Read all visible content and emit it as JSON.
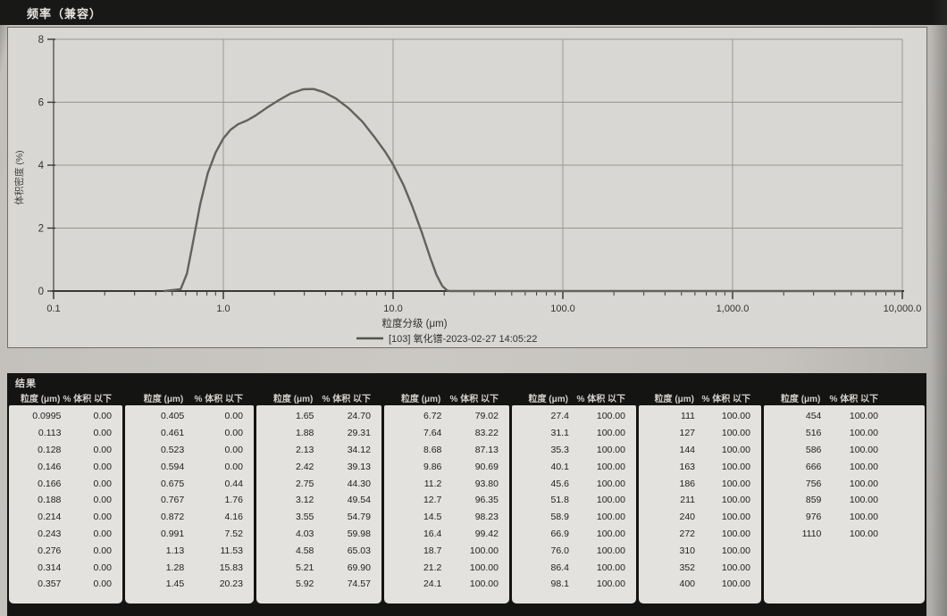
{
  "header": {
    "title": "频率（兼容）"
  },
  "chart_data": {
    "type": "line",
    "title": "频率（兼容）",
    "xlabel": "粒度分级 (μm)",
    "ylabel": "体积密度 (%)",
    "xscale": "log",
    "xlim": [
      0.1,
      10000
    ],
    "ylim": [
      0,
      8
    ],
    "x_tick_labels": [
      "0.1",
      "1.0",
      "10.0",
      "100.0",
      "1,000.0",
      "10,000.0"
    ],
    "x_tick_values": [
      0.1,
      1,
      10,
      100,
      1000,
      10000
    ],
    "y_ticks": [
      0,
      2,
      4,
      6,
      8
    ],
    "grid": true,
    "legend_position": "bottom",
    "curve_color": "#64625d",
    "series": [
      {
        "name": "[103] 氧化镨-2023-02-27 14:05:22",
        "points": [
          [
            0.45,
            0
          ],
          [
            0.56,
            0.06
          ],
          [
            0.61,
            0.55
          ],
          [
            0.66,
            1.5
          ],
          [
            0.73,
            2.75
          ],
          [
            0.81,
            3.75
          ],
          [
            0.9,
            4.4
          ],
          [
            1.0,
            4.85
          ],
          [
            1.1,
            5.12
          ],
          [
            1.22,
            5.3
          ],
          [
            1.38,
            5.42
          ],
          [
            1.55,
            5.58
          ],
          [
            1.8,
            5.82
          ],
          [
            2.1,
            6.05
          ],
          [
            2.5,
            6.28
          ],
          [
            2.95,
            6.41
          ],
          [
            3.4,
            6.42
          ],
          [
            3.9,
            6.32
          ],
          [
            4.6,
            6.12
          ],
          [
            5.5,
            5.8
          ],
          [
            6.6,
            5.38
          ],
          [
            7.8,
            4.88
          ],
          [
            9.0,
            4.42
          ],
          [
            10.0,
            4.02
          ],
          [
            11.5,
            3.38
          ],
          [
            13.0,
            2.68
          ],
          [
            14.8,
            1.85
          ],
          [
            16.5,
            1.08
          ],
          [
            18.0,
            0.52
          ],
          [
            19.5,
            0.16
          ],
          [
            20.8,
            0.02
          ],
          [
            21.5,
            0
          ],
          [
            9800,
            0
          ]
        ]
      }
    ]
  },
  "table": {
    "title": "结果",
    "size_header": "粒度 (μm)",
    "pct_header": "% 体积 以下",
    "groups": [
      [
        [
          "0.0995",
          "0.00"
        ],
        [
          "0.113",
          "0.00"
        ],
        [
          "0.128",
          "0.00"
        ],
        [
          "0.146",
          "0.00"
        ],
        [
          "0.166",
          "0.00"
        ],
        [
          "0.188",
          "0.00"
        ],
        [
          "0.214",
          "0.00"
        ],
        [
          "0.243",
          "0.00"
        ],
        [
          "0.276",
          "0.00"
        ],
        [
          "0.314",
          "0.00"
        ],
        [
          "0.357",
          "0.00"
        ]
      ],
      [
        [
          "0.405",
          "0.00"
        ],
        [
          "0.461",
          "0.00"
        ],
        [
          "0.523",
          "0.00"
        ],
        [
          "0.594",
          "0.00"
        ],
        [
          "0.675",
          "0.44"
        ],
        [
          "0.767",
          "1.76"
        ],
        [
          "0.872",
          "4.16"
        ],
        [
          "0.991",
          "7.52"
        ],
        [
          "1.13",
          "11.53"
        ],
        [
          "1.28",
          "15.83"
        ],
        [
          "1.45",
          "20.23"
        ]
      ],
      [
        [
          "1.65",
          "24.70"
        ],
        [
          "1.88",
          "29.31"
        ],
        [
          "2.13",
          "34.12"
        ],
        [
          "2.42",
          "39.13"
        ],
        [
          "2.75",
          "44.30"
        ],
        [
          "3.12",
          "49.54"
        ],
        [
          "3.55",
          "54.79"
        ],
        [
          "4.03",
          "59.98"
        ],
        [
          "4.58",
          "65.03"
        ],
        [
          "5.21",
          "69.90"
        ],
        [
          "5.92",
          "74.57"
        ]
      ],
      [
        [
          "6.72",
          "79.02"
        ],
        [
          "7.64",
          "83.22"
        ],
        [
          "8.68",
          "87.13"
        ],
        [
          "9.86",
          "90.69"
        ],
        [
          "11.2",
          "93.80"
        ],
        [
          "12.7",
          "96.35"
        ],
        [
          "14.5",
          "98.23"
        ],
        [
          "16.4",
          "99.42"
        ],
        [
          "18.7",
          "100.00"
        ],
        [
          "21.2",
          "100.00"
        ],
        [
          "24.1",
          "100.00"
        ]
      ],
      [
        [
          "27.4",
          "100.00"
        ],
        [
          "31.1",
          "100.00"
        ],
        [
          "35.3",
          "100.00"
        ],
        [
          "40.1",
          "100.00"
        ],
        [
          "45.6",
          "100.00"
        ],
        [
          "51.8",
          "100.00"
        ],
        [
          "58.9",
          "100.00"
        ],
        [
          "66.9",
          "100.00"
        ],
        [
          "76.0",
          "100.00"
        ],
        [
          "86.4",
          "100.00"
        ],
        [
          "98.1",
          "100.00"
        ]
      ],
      [
        [
          "111",
          "100.00"
        ],
        [
          "127",
          "100.00"
        ],
        [
          "144",
          "100.00"
        ],
        [
          "163",
          "100.00"
        ],
        [
          "186",
          "100.00"
        ],
        [
          "211",
          "100.00"
        ],
        [
          "240",
          "100.00"
        ],
        [
          "272",
          "100.00"
        ],
        [
          "310",
          "100.00"
        ],
        [
          "352",
          "100.00"
        ],
        [
          "400",
          "100.00"
        ]
      ],
      [
        [
          "454",
          "100.00"
        ],
        [
          "516",
          "100.00"
        ],
        [
          "586",
          "100.00"
        ],
        [
          "666",
          "100.00"
        ],
        [
          "756",
          "100.00"
        ],
        [
          "859",
          "100.00"
        ],
        [
          "976",
          "100.00"
        ],
        [
          "1110",
          "100.00"
        ]
      ]
    ]
  }
}
